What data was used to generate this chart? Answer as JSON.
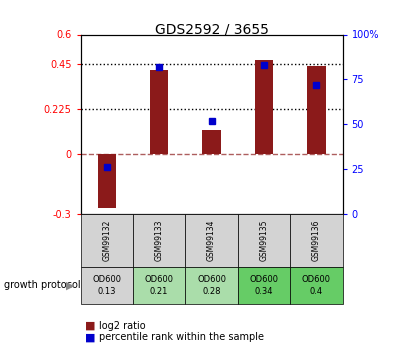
{
  "title": "GDS2592 / 3655",
  "categories": [
    "GSM99132",
    "GSM99133",
    "GSM99134",
    "GSM99135",
    "GSM99136"
  ],
  "log2_ratio": [
    -0.27,
    0.42,
    0.12,
    0.47,
    0.44
  ],
  "percentile_rank": [
    26,
    82,
    52,
    83,
    72
  ],
  "bar_color": "#8B1A1A",
  "dot_color": "#0000CC",
  "left_ylim": [
    -0.3,
    0.6
  ],
  "right_ylim": [
    0,
    100
  ],
  "left_yticks": [
    -0.3,
    0,
    0.225,
    0.45,
    0.6
  ],
  "left_yticklabels": [
    "-0.3",
    "0",
    "0.225",
    "0.45",
    "0.6"
  ],
  "right_yticks": [
    0,
    25,
    50,
    75,
    100
  ],
  "right_yticklabels": [
    "0",
    "25",
    "50",
    "75",
    "100%"
  ],
  "hlines_dotted": [
    0.225,
    0.45
  ],
  "hline_dashed_val": 0,
  "protocol_label": "growth protocol",
  "protocol_values": [
    "OD600\n0.13",
    "OD600\n0.21",
    "OD600\n0.28",
    "OD600\n0.34",
    "OD600\n0.4"
  ],
  "protocol_colors": [
    "#d3d3d3",
    "#aaddaa",
    "#aaddaa",
    "#66cc66",
    "#66cc66"
  ],
  "legend_items": [
    "log2 ratio",
    "percentile rank within the sample"
  ],
  "legend_colors": [
    "#8B1A1A",
    "#0000CC"
  ]
}
